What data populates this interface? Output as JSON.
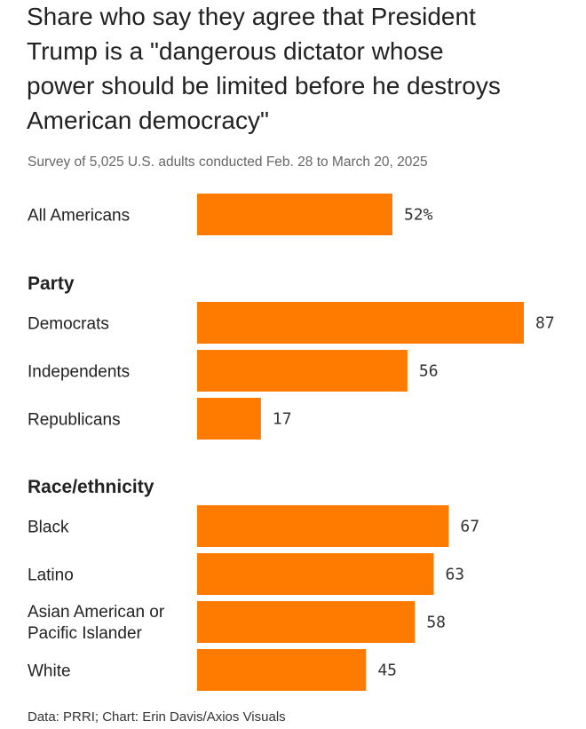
{
  "chart_data": {
    "type": "bar",
    "orientation": "horizontal",
    "title_lines": [
      "Share who say they agree that President",
      "Trump is a \"dangerous dictator whose",
      "power should be limited before he destroys",
      "American democracy\""
    ],
    "subtitle": "Survey of 5,025 U.S. adults conducted Feb. 28 to March 20, 2025",
    "source": "Data: PRRI; Chart: Erin Davis/Axios Visuals",
    "xlim": [
      0,
      100
    ],
    "bar_color": "#ff7b00",
    "groups": [
      {
        "name": "",
        "items": [
          {
            "label_lines": [
              "All Americans"
            ],
            "value": 52,
            "value_label": "52%"
          }
        ]
      },
      {
        "name": "Party",
        "items": [
          {
            "label_lines": [
              "Democrats"
            ],
            "value": 87,
            "value_label": "87"
          },
          {
            "label_lines": [
              "Independents"
            ],
            "value": 56,
            "value_label": "56"
          },
          {
            "label_lines": [
              "Republicans"
            ],
            "value": 17,
            "value_label": "17"
          }
        ]
      },
      {
        "name": "Race/ethnicity",
        "items": [
          {
            "label_lines": [
              "Black"
            ],
            "value": 67,
            "value_label": "67"
          },
          {
            "label_lines": [
              "Latino"
            ],
            "value": 63,
            "value_label": "63"
          },
          {
            "label_lines": [
              "Asian American or",
              "Pacific Islander"
            ],
            "value": 58,
            "value_label": "58"
          },
          {
            "label_lines": [
              "White"
            ],
            "value": 45,
            "value_label": "45"
          }
        ]
      }
    ]
  }
}
